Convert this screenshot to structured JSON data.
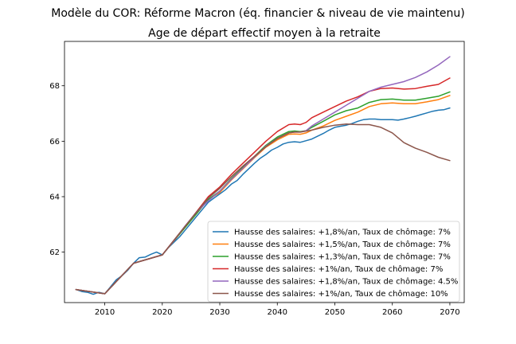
{
  "chart_data": {
    "type": "line",
    "suptitle": "Modèle du COR: Réforme Macron (éq. financier & niveau de vie maintenu)",
    "title": "Age de départ effectif moyen à la retraite",
    "xlabel": "",
    "ylabel": "",
    "xlim": [
      2003,
      2072.5
    ],
    "ylim": [
      60.18,
      69.6
    ],
    "xticks": [
      2010,
      2020,
      2030,
      2040,
      2050,
      2060,
      2070
    ],
    "yticks": [
      62,
      64,
      66,
      68
    ],
    "grid": false,
    "legend_position": "lower-right",
    "series": [
      {
        "name": "Hausse des salaires: +1,8%/an, Taux de chômage: 7%",
        "color": "#1f77b4",
        "x": [
          2005,
          2006,
          2007,
          2008,
          2009,
          2010,
          2011,
          2012,
          2013,
          2014,
          2015,
          2016,
          2017,
          2018,
          2019,
          2020,
          2021,
          2022,
          2023,
          2024,
          2025,
          2026,
          2027,
          2028,
          2029,
          2030,
          2031,
          2032,
          2033,
          2034,
          2035,
          2036,
          2037,
          2038,
          2039,
          2040,
          2041,
          2042,
          2043,
          2044,
          2045,
          2046,
          2047,
          2048,
          2049,
          2050,
          2051,
          2052,
          2053,
          2054,
          2055,
          2056,
          2057,
          2058,
          2059,
          2060,
          2061,
          2062,
          2063,
          2064,
          2065,
          2066,
          2067,
          2068,
          2069,
          2070
        ],
        "y": [
          60.65,
          60.58,
          60.55,
          60.48,
          60.55,
          60.5,
          60.75,
          61.0,
          61.15,
          61.35,
          61.6,
          61.8,
          61.82,
          61.92,
          62.0,
          61.9,
          62.15,
          62.35,
          62.55,
          62.8,
          63.05,
          63.3,
          63.55,
          63.8,
          63.95,
          64.1,
          64.25,
          64.45,
          64.58,
          64.8,
          65.0,
          65.2,
          65.38,
          65.52,
          65.68,
          65.78,
          65.9,
          65.96,
          65.98,
          65.96,
          66.02,
          66.08,
          66.18,
          66.28,
          66.4,
          66.5,
          66.54,
          66.58,
          66.64,
          66.72,
          66.78,
          66.8,
          66.8,
          66.78,
          66.78,
          66.78,
          66.76,
          66.8,
          66.85,
          66.9,
          66.96,
          67.02,
          67.08,
          67.12,
          67.14,
          67.2
        ]
      },
      {
        "name": "Hausse des salaires: +1,5%/an, Taux de chômage: 7%",
        "color": "#ff7f0e",
        "x": [
          2005,
          2010,
          2015,
          2020,
          2025,
          2028,
          2030,
          2032,
          2034,
          2036,
          2038,
          2040,
          2042,
          2043,
          2044,
          2045,
          2046,
          2048,
          2050,
          2052,
          2054,
          2056,
          2058,
          2060,
          2062,
          2064,
          2066,
          2068,
          2070
        ],
        "y": [
          60.65,
          60.5,
          61.6,
          61.9,
          63.15,
          63.9,
          64.15,
          64.6,
          65.0,
          65.4,
          65.78,
          66.05,
          66.25,
          66.26,
          66.25,
          66.3,
          66.4,
          66.55,
          66.75,
          66.9,
          67.05,
          67.25,
          67.35,
          67.38,
          67.35,
          67.35,
          67.42,
          67.5,
          67.65
        ]
      },
      {
        "name": "Hausse des salaires: +1,3%/an, Taux de chômage: 7%",
        "color": "#2ca02c",
        "x": [
          2005,
          2010,
          2015,
          2020,
          2025,
          2028,
          2030,
          2032,
          2034,
          2036,
          2038,
          2040,
          2042,
          2043,
          2044,
          2045,
          2046,
          2048,
          2050,
          2052,
          2054,
          2056,
          2058,
          2060,
          2062,
          2064,
          2066,
          2068,
          2070
        ],
        "y": [
          60.65,
          60.5,
          61.6,
          61.9,
          63.15,
          63.9,
          64.2,
          64.65,
          65.05,
          65.45,
          65.85,
          66.15,
          66.35,
          66.37,
          66.35,
          66.38,
          66.5,
          66.72,
          66.95,
          67.1,
          67.2,
          67.4,
          67.5,
          67.52,
          67.48,
          67.48,
          67.55,
          67.62,
          67.78
        ]
      },
      {
        "name": "Hausse des salaires: +1%/an, Taux de chômage: 7%",
        "color": "#d62728",
        "x": [
          2005,
          2010,
          2015,
          2020,
          2025,
          2028,
          2030,
          2032,
          2034,
          2036,
          2038,
          2040,
          2042,
          2043,
          2044,
          2045,
          2046,
          2048,
          2050,
          2052,
          2054,
          2056,
          2058,
          2060,
          2062,
          2064,
          2066,
          2068,
          2070
        ],
        "y": [
          60.65,
          60.5,
          61.6,
          61.9,
          63.2,
          64.0,
          64.35,
          64.8,
          65.2,
          65.6,
          66.0,
          66.35,
          66.6,
          66.62,
          66.6,
          66.68,
          66.85,
          67.05,
          67.25,
          67.45,
          67.6,
          67.8,
          67.9,
          67.92,
          67.88,
          67.9,
          67.98,
          68.05,
          68.28
        ]
      },
      {
        "name": "Hausse des salaires: +1,8%/an, Taux de chômage: 4.5%",
        "color": "#9467bd",
        "x": [
          2005,
          2010,
          2015,
          2020,
          2022,
          2024,
          2026,
          2028,
          2030,
          2032,
          2034,
          2036,
          2038,
          2040,
          2042,
          2043,
          2044,
          2045,
          2046,
          2048,
          2050,
          2052,
          2054,
          2056,
          2058,
          2060,
          2062,
          2064,
          2066,
          2068,
          2070
        ],
        "y": [
          60.65,
          60.5,
          61.6,
          61.9,
          62.4,
          62.95,
          63.45,
          63.85,
          64.2,
          64.62,
          65.02,
          65.42,
          65.82,
          66.1,
          66.3,
          66.33,
          66.33,
          66.38,
          66.55,
          66.8,
          67.05,
          67.3,
          67.55,
          67.8,
          67.95,
          68.05,
          68.15,
          68.3,
          68.5,
          68.75,
          69.05
        ]
      },
      {
        "name": "Hausse des salaires: +1%/an, Taux de chômage: 10%",
        "color": "#8c564b",
        "x": [
          2005,
          2010,
          2015,
          2020,
          2025,
          2028,
          2030,
          2032,
          2034,
          2036,
          2038,
          2040,
          2042,
          2043,
          2044,
          2046,
          2048,
          2050,
          2052,
          2054,
          2056,
          2058,
          2060,
          2062,
          2064,
          2066,
          2068,
          2070
        ],
        "y": [
          60.65,
          60.5,
          61.6,
          61.9,
          63.2,
          63.95,
          64.3,
          64.72,
          65.1,
          65.45,
          65.8,
          66.1,
          66.3,
          66.33,
          66.33,
          66.4,
          66.5,
          66.58,
          66.62,
          66.6,
          66.6,
          66.5,
          66.3,
          65.95,
          65.75,
          65.6,
          65.42,
          65.3
        ]
      }
    ]
  }
}
